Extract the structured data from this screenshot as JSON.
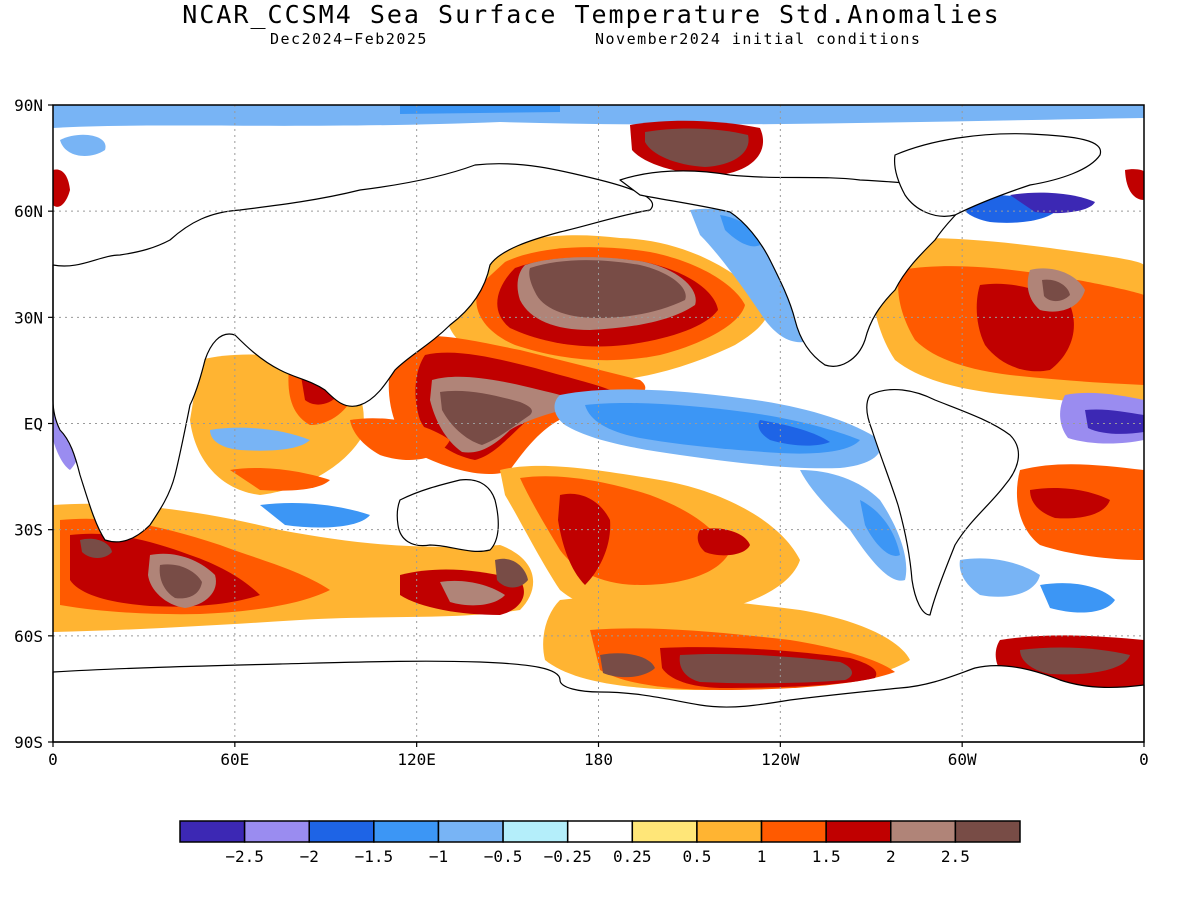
{
  "map": {
    "title": "NCAR_CCSM4 Sea Surface Temperature Std.Anomalies",
    "period": "Dec2024−Feb2025",
    "initial_conditions": "November2024 initial conditions",
    "lat_labels": [
      "90N",
      "60N",
      "30N",
      "EQ",
      "30S",
      "60S",
      "90S"
    ],
    "lon_labels": [
      "0",
      "60E",
      "120E",
      "180",
      "120W",
      "60W",
      "0"
    ]
  },
  "legend": {
    "colors": [
      "#3c28b4",
      "#9a8cf0",
      "#1e64e6",
      "#3c96f5",
      "#78b4f5",
      "#b4eefa",
      "#ffffff",
      "#ffe678",
      "#ffb432",
      "#ff5a00",
      "#c00000",
      "#b08478",
      "#784c46"
    ],
    "labels": [
      "−2.5",
      "−2",
      "−1.5",
      "−1",
      "−0.5",
      "−0.25",
      "0.25",
      "0.5",
      "1",
      "1.5",
      "2",
      "2.5"
    ]
  }
}
